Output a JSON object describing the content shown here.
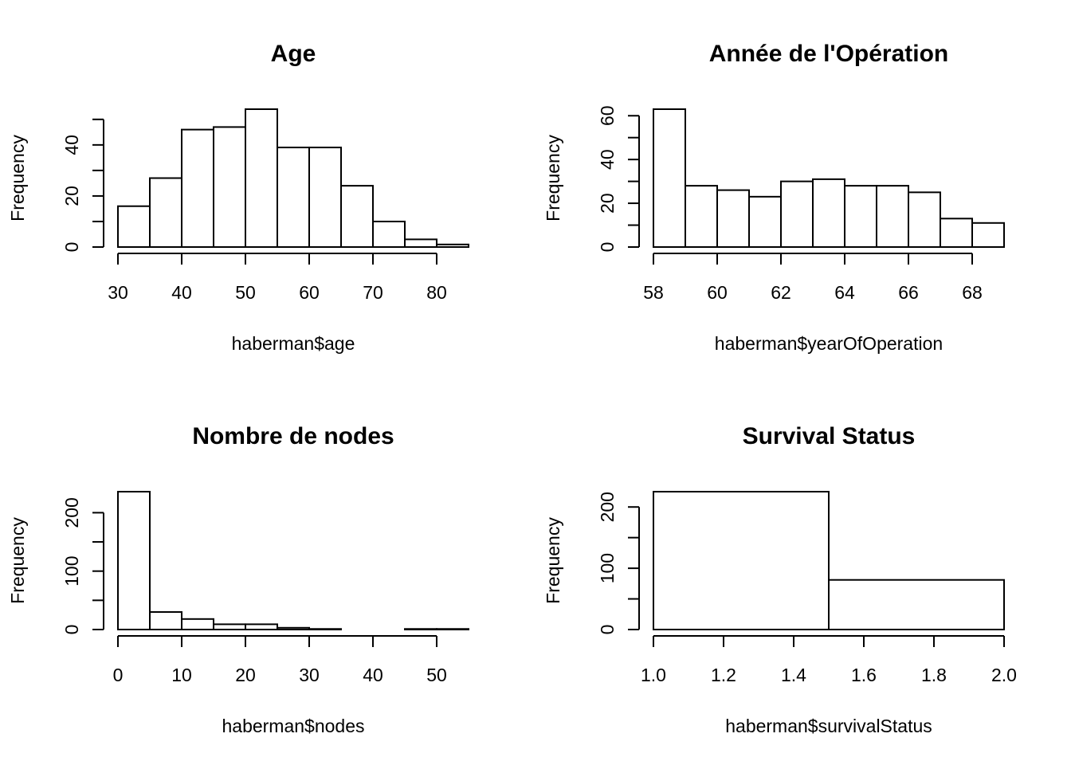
{
  "chart_data": [
    {
      "type": "bar",
      "title": "Age",
      "xlabel": "haberman$age",
      "ylabel": "Frequency",
      "breaks": [
        30,
        35,
        40,
        45,
        50,
        55,
        60,
        65,
        70,
        75,
        80,
        85
      ],
      "values": [
        16,
        27,
        46,
        47,
        54,
        39,
        39,
        24,
        10,
        3,
        1
      ],
      "xticks": [
        30,
        40,
        50,
        60,
        70,
        80
      ],
      "xtick_labels": [
        "30",
        "40",
        "50",
        "60",
        "70",
        "80"
      ],
      "yticks": [
        0,
        10,
        20,
        30,
        40,
        50
      ],
      "ytick_labels": [
        "0",
        "",
        "20",
        "",
        "40",
        ""
      ],
      "xlim": [
        30,
        85
      ],
      "ylim": [
        0,
        54
      ]
    },
    {
      "type": "bar",
      "title": "Année de l'Opération",
      "xlabel": "haberman$yearOfOperation",
      "ylabel": "Frequency",
      "breaks": [
        58,
        59,
        60,
        61,
        62,
        63,
        64,
        65,
        66,
        67,
        68,
        69
      ],
      "values": [
        63,
        28,
        26,
        23,
        30,
        31,
        28,
        28,
        25,
        13,
        11
      ],
      "xticks": [
        58,
        60,
        62,
        64,
        66,
        68
      ],
      "xtick_labels": [
        "58",
        "60",
        "62",
        "64",
        "66",
        "68"
      ],
      "yticks": [
        0,
        10,
        20,
        30,
        40,
        50,
        60
      ],
      "ytick_labels": [
        "0",
        "",
        "20",
        "",
        "40",
        "",
        "60"
      ],
      "xlim": [
        58,
        69
      ],
      "ylim": [
        0,
        63
      ]
    },
    {
      "type": "bar",
      "title": "Nombre de nodes",
      "xlabel": "haberman$nodes",
      "ylabel": "Frequency",
      "breaks": [
        0,
        5,
        10,
        15,
        20,
        25,
        30,
        35,
        40,
        45,
        50,
        55
      ],
      "values": [
        236,
        30,
        18,
        9,
        9,
        3,
        1,
        0,
        0,
        1,
        1
      ],
      "xticks": [
        0,
        10,
        20,
        30,
        40,
        50
      ],
      "xtick_labels": [
        "0",
        "10",
        "20",
        "30",
        "40",
        "50"
      ],
      "yticks": [
        0,
        50,
        100,
        150,
        200
      ],
      "ytick_labels": [
        "0",
        "",
        "100",
        "",
        "200"
      ],
      "xlim": [
        0,
        55
      ],
      "ylim": [
        0,
        236
      ]
    },
    {
      "type": "bar",
      "title": "Survival Status",
      "xlabel": "haberman$survivalStatus",
      "ylabel": "Frequency",
      "breaks": [
        1.0,
        1.5,
        2.0
      ],
      "values": [
        225,
        81
      ],
      "xticks": [
        1.0,
        1.2,
        1.4,
        1.6,
        1.8,
        2.0
      ],
      "xtick_labels": [
        "1.0",
        "1.2",
        "1.4",
        "1.6",
        "1.8",
        "2.0"
      ],
      "yticks": [
        0,
        50,
        100,
        150,
        200
      ],
      "ytick_labels": [
        "0",
        "",
        "100",
        "",
        "200"
      ],
      "xlim": [
        1.0,
        2.0
      ],
      "ylim": [
        0,
        225
      ]
    }
  ]
}
